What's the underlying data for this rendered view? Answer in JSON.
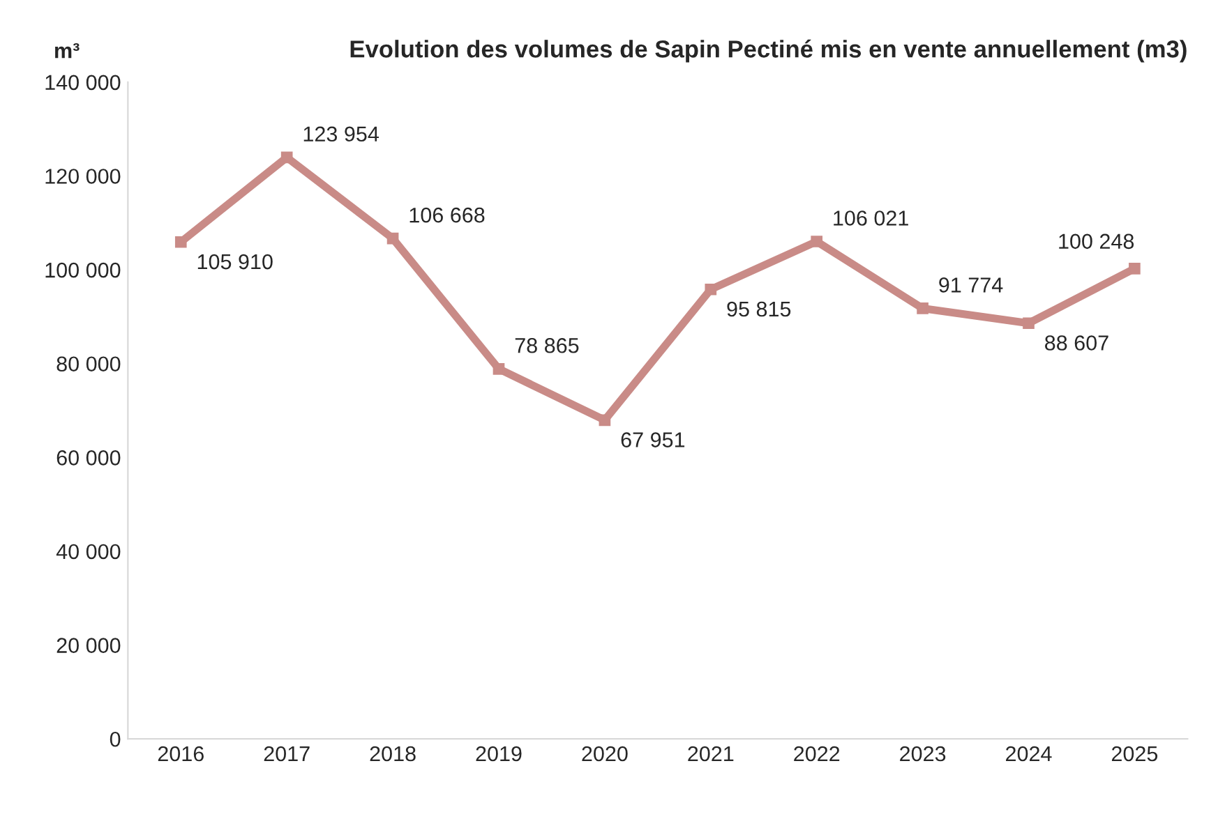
{
  "chart_data": {
    "type": "line",
    "title": "Evolution des volumes de Sapin Pectiné mis en vente annuellement (m3)",
    "ylabel": "m³",
    "categories": [
      "2016",
      "2017",
      "2018",
      "2019",
      "2020",
      "2021",
      "2022",
      "2023",
      "2024",
      "2025"
    ],
    "series": [
      {
        "color": "#c98b87",
        "values": [
          105910,
          123954,
          106668,
          78865,
          67951,
          95815,
          106021,
          91774,
          88607,
          100248
        ],
        "value_labels": [
          "105 910",
          "123 954",
          "106 668",
          "78 865",
          "67 951",
          "95 815",
          "106 021",
          "91 774",
          "88 607",
          "100 248"
        ]
      }
    ],
    "ylim": [
      0,
      140000
    ],
    "yticks": [
      {
        "value": 0,
        "label": "0"
      },
      {
        "value": 20000,
        "label": "20 000"
      },
      {
        "value": 40000,
        "label": "40 000"
      },
      {
        "value": 60000,
        "label": "60 000"
      },
      {
        "value": 80000,
        "label": "80 000"
      },
      {
        "value": 100000,
        "label": "100 000"
      },
      {
        "value": 120000,
        "label": "120 000"
      },
      {
        "value": 140000,
        "label": "140 000"
      }
    ],
    "grid": false,
    "marker": "square",
    "line_style": "solid"
  }
}
